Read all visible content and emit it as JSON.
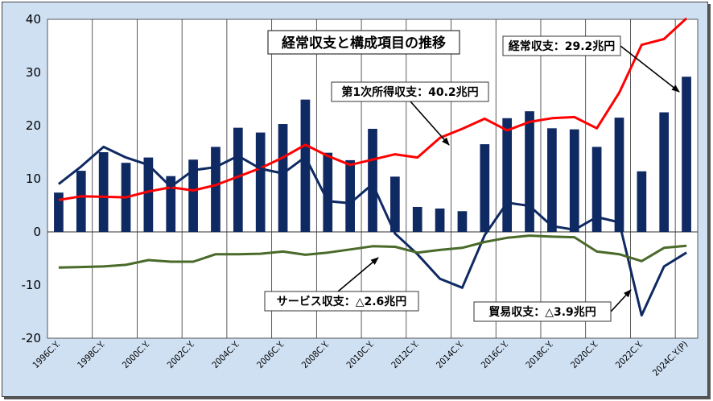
{
  "chart_data": {
    "type": "bar+line",
    "title": "経常収支と構成項目の推移",
    "ylim": [
      -20,
      40
    ],
    "yticks": [
      -20,
      -10,
      0,
      10,
      20,
      30,
      40
    ],
    "grid": "vertical",
    "x": [
      "1996C.Y.",
      "1997C.Y.",
      "1998C.Y.",
      "1999C.Y.",
      "2000C.Y.",
      "2001C.Y.",
      "2002C.Y.",
      "2003C.Y.",
      "2004C.Y.",
      "2005C.Y.",
      "2006C.Y.",
      "2007C.Y.",
      "2008C.Y.",
      "2009C.Y.",
      "2010C.Y.",
      "2011C.Y.",
      "2012C.Y.",
      "2013C.Y.",
      "2014C.Y.",
      "2015C.Y.",
      "2016C.Y.",
      "2017C.Y.",
      "2018C.Y.",
      "2019C.Y.",
      "2020C.Y.",
      "2021C.Y.",
      "2022C.Y.",
      "2023C.Y.",
      "2024C.Y.(P)"
    ],
    "x_tick_labels": [
      "1996C.Y.",
      "1998C.Y.",
      "2000C.Y.",
      "2002C.Y.",
      "2004C.Y.",
      "2006C.Y.",
      "2008C.Y.",
      "2010C.Y.",
      "2012C.Y.",
      "2014C.Y.",
      "2016C.Y.",
      "2018C.Y.",
      "2020C.Y.",
      "2022C.Y.",
      "2024C.Y.(P)"
    ],
    "series": [
      {
        "kind": "bar",
        "color": "#0f2a63",
        "values": [
          7.4,
          11.5,
          15.0,
          13.0,
          14.0,
          10.5,
          13.6,
          16.0,
          19.6,
          18.7,
          20.3,
          24.9,
          14.9,
          13.5,
          19.4,
          10.4,
          4.7,
          4.4,
          3.9,
          16.5,
          21.4,
          22.7,
          19.5,
          19.3,
          16.0,
          21.5,
          11.4,
          22.5,
          29.2
        ]
      },
      {
        "kind": "line",
        "color": "#ff0000",
        "values": [
          6.0,
          6.7,
          6.6,
          6.5,
          7.6,
          8.4,
          7.8,
          8.8,
          10.4,
          12.0,
          14.0,
          16.4,
          14.3,
          12.6,
          13.6,
          14.6,
          14.0,
          17.7,
          19.4,
          21.3,
          19.1,
          20.7,
          21.4,
          21.6,
          19.5,
          26.2,
          35.2,
          36.3,
          40.2
        ]
      },
      {
        "kind": "line",
        "color": "#0f2a63",
        "values": [
          9.0,
          12.3,
          16.0,
          14.0,
          12.6,
          8.5,
          11.6,
          12.2,
          14.3,
          11.9,
          11.0,
          14.1,
          5.8,
          5.4,
          9.0,
          -0.3,
          -4.2,
          -8.8,
          -10.5,
          -0.6,
          5.5,
          4.9,
          1.1,
          0.4,
          2.8,
          1.8,
          -15.7,
          -6.5,
          -3.9
        ]
      },
      {
        "kind": "line",
        "color": "#4a6a2a",
        "values": [
          -6.7,
          -6.6,
          -6.5,
          -6.2,
          -5.3,
          -5.6,
          -5.6,
          -4.2,
          -4.2,
          -4.1,
          -3.7,
          -4.3,
          -3.9,
          -3.3,
          -2.7,
          -2.8,
          -3.9,
          -3.4,
          -3.0,
          -1.9,
          -1.1,
          -0.7,
          -0.9,
          -1.0,
          -3.7,
          -4.2,
          -5.5,
          -3.0,
          -2.6
        ]
      }
    ],
    "annotations": [
      "経常収支：29.2兆円",
      "第1次所得収支：40.2兆円",
      "サービス収支：△2.6兆円",
      "貿易収支：△3.9兆円"
    ]
  }
}
